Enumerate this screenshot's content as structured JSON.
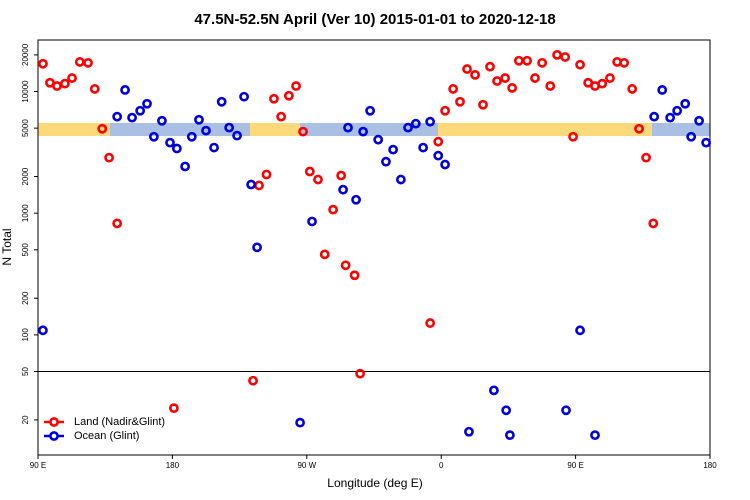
{
  "chart_data": {
    "type": "scatter",
    "title": "47.5N-52.5N April (Ver 10)   2015-01-01 to 2020-12-18",
    "x_label": "Longitude (deg E)",
    "y_label": "N Total",
    "y_scale": "log",
    "legend": "lower left",
    "hline": 50,
    "xlim": [
      90,
      540
    ],
    "ylim": [
      10.3,
      26500
    ],
    "xticks": [
      {
        "value": 90,
        "label": "90 E"
      },
      180,
      {
        "value": 270,
        "label": "90 W"
      },
      {
        "value": 360,
        "label": "0"
      },
      {
        "value": 450,
        "label": "90 E"
      },
      {
        "value": 540,
        "label": "180"
      }
    ],
    "yticks": [
      20,
      50,
      100,
      200,
      500,
      1000,
      2000,
      5000,
      10000,
      20000
    ],
    "series": [
      {
        "name": "Land (Nadir&Glint)",
        "color": "#ff0000",
        "x": [
          93.3,
          98,
          102.7,
          108,
          112.8,
          118,
          123.5,
          128,
          133,
          137.6,
          143,
          181,
          234,
          238,
          243,
          248,
          252.8,
          258,
          262.8,
          267.5,
          272,
          277.5,
          282,
          287.6,
          293,
          296,
          302,
          305.7,
          352.6,
          358,
          362.6,
          368,
          372.6,
          377.3,
          382.7,
          388,
          392.7,
          397.4,
          402.8,
          407.5,
          412,
          417.5,
          422.8,
          427.6,
          433,
          437.6,
          443,
          448.3,
          453,
          458.4,
          463,
          467.8,
          473,
          477.8,
          482.5,
          487.9,
          492.5,
          497.2,
          502
        ],
        "values": [
          16900,
          11800,
          11100,
          11600,
          12900,
          17500,
          17200,
          10500,
          4940,
          2860,
          824,
          25,
          42,
          1690,
          2080,
          8720,
          6210,
          9230,
          11100,
          4680,
          2200,
          1890,
          459,
          1070,
          2040,
          373,
          309,
          48,
          125,
          3870,
          6950,
          10500,
          8240,
          15300,
          13700,
          7780,
          16000,
          12200,
          12900,
          10700,
          17900,
          17900,
          12900,
          17200,
          11100,
          20000,
          19200,
          4250,
          16600,
          11800,
          11100,
          11600,
          12900,
          17500,
          17200,
          10500,
          4940,
          2860,
          824
        ]
      },
      {
        "name": "Ocean (Glint)",
        "color": "#0000dd",
        "x": [
          93.3,
          143,
          148.3,
          153,
          158.4,
          163,
          167.6,
          173,
          178.4,
          183,
          188.5,
          193,
          197.8,
          202.5,
          207.9,
          213,
          218,
          223.3,
          228,
          232.7,
          236.7,
          265.5,
          273.5,
          294.3,
          303,
          297.6,
          307.7,
          312.4,
          317.8,
          323,
          327.8,
          333,
          337.8,
          343,
          347.9,
          352.6,
          358,
          362.6,
          378.6,
          395.3,
          403.5,
          406,
          443.6,
          453,
          463,
          502.6,
          508,
          513.3,
          518,
          523.4,
          527.4,
          532.7,
          537.4
        ],
        "values": [
          109,
          6210,
          10300,
          6100,
          6950,
          7930,
          4250,
          5750,
          3800,
          3400,
          2420,
          4250,
          5860,
          4770,
          3460,
          8240,
          5050,
          4340,
          9060,
          1720,
          524,
          19,
          855,
          1560,
          1290,
          5050,
          4680,
          6950,
          4020,
          2650,
          3330,
          1890,
          5050,
          5440,
          3460,
          5650,
          2970,
          2510,
          16,
          35,
          24,
          15,
          24,
          109,
          15,
          6210,
          10300,
          6100,
          6950,
          7930,
          4250,
          5750,
          3800
        ]
      }
    ]
  }
}
